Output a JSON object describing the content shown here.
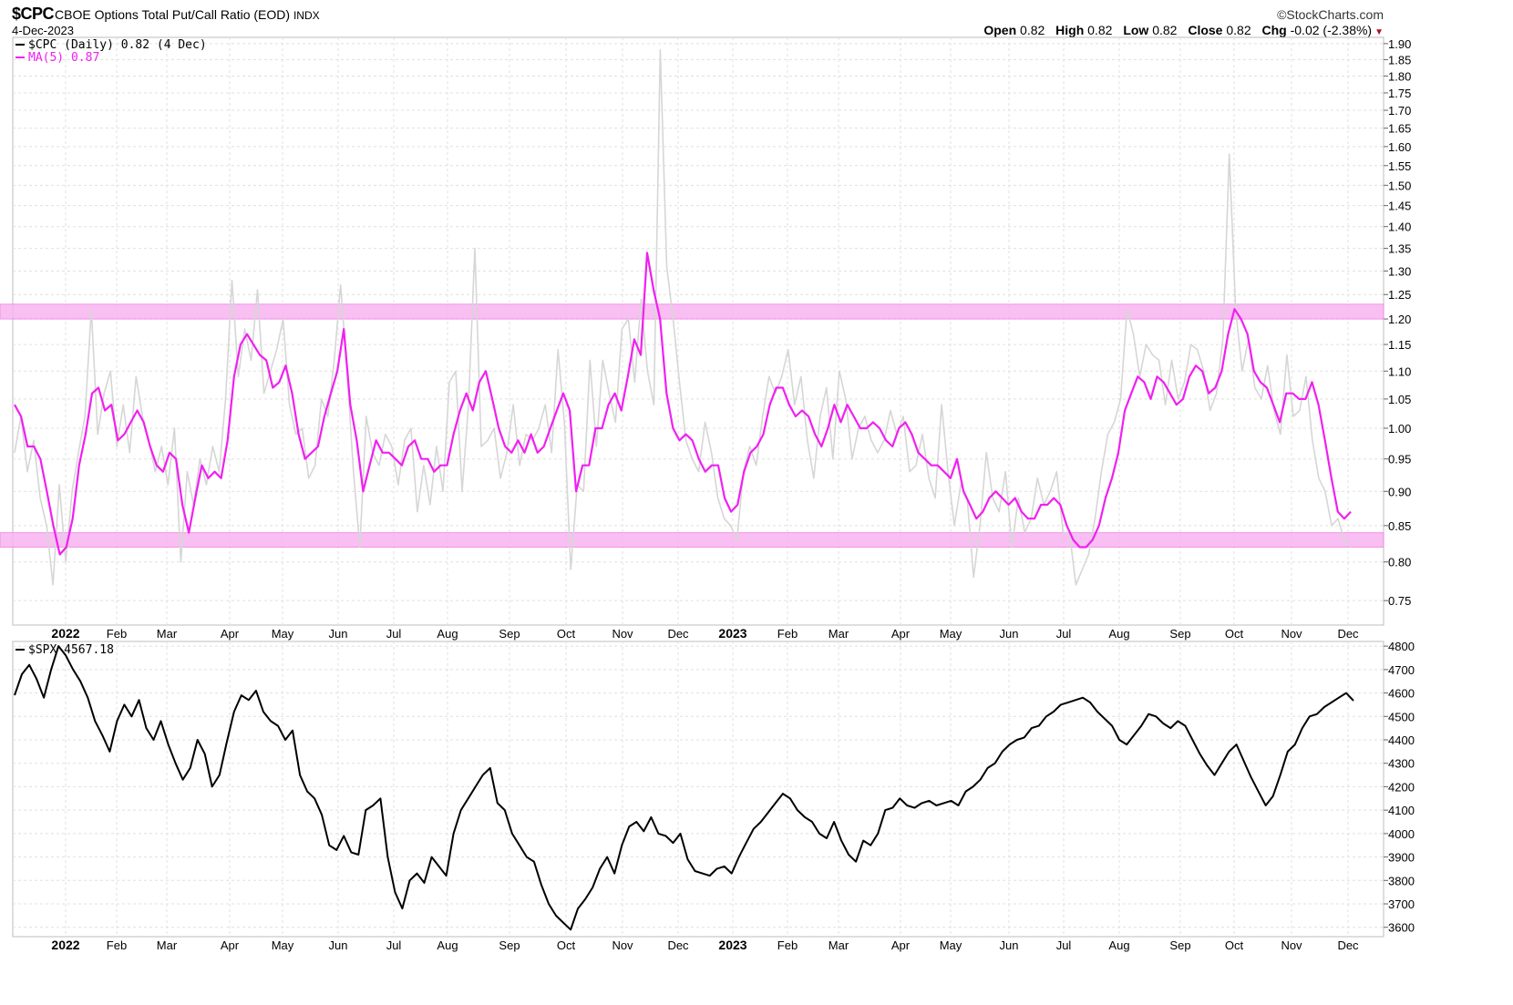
{
  "header": {
    "symbol": "$CPC",
    "name": "CBOE Options Total Put/Call Ratio (EOD)",
    "exchange": "INDX",
    "date": "4-Dec-2023",
    "brand": "©StockCharts.com",
    "open_label": "Open",
    "open": "0.82",
    "high_label": "High",
    "high": "0.82",
    "low_label": "Low",
    "low": "0.82",
    "close_label": "Close",
    "close": "0.82",
    "chg_label": "Chg",
    "chg": "-0.02 (-2.38%)",
    "down_icon": "down-triangle-icon"
  },
  "colors": {
    "cpc_raw": "#d6d6d6",
    "ma": "#f020f0",
    "band": "#f8b4f0",
    "spx": "#000000",
    "grid": "#e0e0e0",
    "chg_down": "#b01020"
  },
  "chart_data": [
    {
      "type": "line",
      "legend": [
        "$CPC (Daily) 0.82 (4 Dec)",
        "MA(5) 0.87"
      ],
      "ylim": [
        0.72,
        1.92
      ],
      "y_scale": "log",
      "y_ticks": [
        0.75,
        0.8,
        0.85,
        0.9,
        0.95,
        1.0,
        1.05,
        1.1,
        1.15,
        1.2,
        1.25,
        1.3,
        1.35,
        1.4,
        1.45,
        1.5,
        1.55,
        1.6,
        1.65,
        1.7,
        1.75,
        1.8,
        1.85,
        1.9
      ],
      "x_ticks": [
        "2022",
        "Feb",
        "Mar",
        "Apr",
        "May",
        "Jun",
        "Jul",
        "Aug",
        "Sep",
        "Oct",
        "Nov",
        "Dec",
        "2023",
        "Feb",
        "Mar",
        "Apr",
        "May",
        "Jun",
        "Jul",
        "Aug",
        "Sep",
        "Oct",
        "Nov",
        "Dec"
      ],
      "bands": [
        [
          1.2,
          1.23
        ],
        [
          0.82,
          0.84
        ]
      ],
      "series": [
        {
          "name": "$CPC (Daily)",
          "values": [
            0.96,
            1.02,
            0.93,
            0.98,
            0.89,
            0.85,
            0.77,
            0.91,
            0.8,
            0.9,
            0.96,
            1.02,
            1.22,
            0.99,
            1.06,
            1.1,
            0.97,
            1.04,
            0.96,
            1.09,
            1.02,
            0.98,
            0.93,
            0.97,
            0.91,
            1.0,
            0.8,
            0.93,
            0.88,
            0.95,
            0.91,
            0.97,
            0.93,
            1.05,
            1.28,
            1.09,
            1.18,
            1.12,
            1.26,
            1.06,
            1.1,
            1.14,
            1.2,
            1.04,
            0.99,
            1.0,
            0.92,
            0.94,
            1.05,
            1.02,
            1.12,
            1.27,
            1.1,
            0.93,
            0.82,
            1.02,
            0.96,
            0.94,
            0.99,
            0.97,
            0.91,
            0.98,
            1.0,
            0.87,
            0.94,
            0.88,
            0.97,
            0.9,
            1.08,
            1.1,
            0.9,
            1.04,
            1.35,
            0.97,
            0.98,
            1.0,
            0.92,
            0.96,
            1.04,
            0.94,
            0.99,
            0.98,
            1.0,
            1.04,
            0.96,
            1.14,
            1.01,
            0.79,
            0.91,
            0.9,
            1.12,
            0.97,
            1.12,
            1.06,
            1.01,
            1.18,
            1.2,
            1.08,
            1.24,
            1.1,
            1.04,
            1.88,
            1.31,
            1.2,
            1.08,
            0.98,
            0.95,
            0.93,
            1.01,
            0.96,
            0.89,
            0.86,
            0.85,
            0.83,
            0.93,
            0.97,
            0.94,
            1.02,
            1.09,
            1.06,
            1.09,
            1.14,
            1.04,
            1.09,
            0.98,
            0.92,
            1.02,
            1.07,
            0.95,
            1.1,
            1.05,
            0.95,
            1.0,
            1.02,
            0.98,
            0.96,
            0.98,
            1.03,
            0.99,
            1.02,
            0.93,
            0.94,
            0.99,
            0.92,
            0.89,
            1.04,
            0.93,
            0.85,
            0.91,
            0.89,
            0.78,
            0.85,
            0.96,
            0.89,
            0.87,
            0.93,
            0.82,
            0.89,
            0.84,
            0.86,
            0.92,
            0.88,
            0.9,
            0.93,
            0.84,
            0.84,
            0.77,
            0.79,
            0.81,
            0.86,
            0.93,
            0.99,
            1.01,
            1.05,
            1.22,
            1.17,
            1.09,
            1.15,
            1.13,
            1.12,
            1.04,
            1.12,
            1.05,
            1.08,
            1.15,
            1.14,
            1.1,
            1.03,
            1.06,
            1.16,
            1.58,
            1.22,
            1.1,
            1.16,
            1.07,
            1.05,
            1.11,
            1.03,
            0.99,
            1.13,
            1.02,
            1.03,
            1.09,
            0.98,
            0.92,
            0.9,
            0.85,
            0.86,
            0.83,
            0.82
          ]
        },
        {
          "name": "MA(5)",
          "values": [
            1.04,
            1.02,
            0.97,
            0.97,
            0.95,
            0.9,
            0.85,
            0.81,
            0.82,
            0.86,
            0.94,
            0.99,
            1.06,
            1.07,
            1.03,
            1.04,
            0.98,
            0.99,
            1.01,
            1.03,
            1.01,
            0.97,
            0.94,
            0.93,
            0.96,
            0.95,
            0.88,
            0.84,
            0.89,
            0.94,
            0.92,
            0.93,
            0.92,
            0.98,
            1.09,
            1.15,
            1.17,
            1.15,
            1.13,
            1.12,
            1.07,
            1.08,
            1.11,
            1.06,
            0.99,
            0.95,
            0.96,
            0.97,
            1.02,
            1.06,
            1.1,
            1.18,
            1.04,
            0.98,
            0.9,
            0.94,
            0.98,
            0.96,
            0.96,
            0.95,
            0.94,
            0.97,
            0.98,
            0.95,
            0.95,
            0.93,
            0.94,
            0.94,
            0.99,
            1.03,
            1.06,
            1.03,
            1.08,
            1.1,
            1.05,
            1.0,
            0.97,
            0.96,
            0.98,
            0.96,
            0.99,
            0.96,
            0.97,
            1.0,
            1.03,
            1.06,
            1.03,
            0.9,
            0.94,
            0.94,
            1.0,
            1.0,
            1.04,
            1.06,
            1.03,
            1.09,
            1.16,
            1.13,
            1.34,
            1.26,
            1.2,
            1.06,
            1.0,
            0.98,
            0.99,
            0.98,
            0.95,
            0.93,
            0.94,
            0.94,
            0.89,
            0.87,
            0.88,
            0.93,
            0.96,
            0.97,
            0.99,
            1.04,
            1.07,
            1.07,
            1.04,
            1.02,
            1.03,
            1.02,
            0.99,
            0.97,
            1.0,
            1.04,
            1.01,
            1.04,
            1.02,
            1.0,
            1.0,
            1.01,
            1.0,
            0.98,
            0.97,
            1.0,
            1.01,
            0.99,
            0.96,
            0.95,
            0.94,
            0.94,
            0.93,
            0.92,
            0.95,
            0.9,
            0.88,
            0.86,
            0.87,
            0.89,
            0.9,
            0.89,
            0.88,
            0.89,
            0.87,
            0.86,
            0.86,
            0.88,
            0.88,
            0.89,
            0.88,
            0.85,
            0.83,
            0.82,
            0.82,
            0.83,
            0.85,
            0.89,
            0.92,
            0.96,
            1.03,
            1.06,
            1.09,
            1.08,
            1.05,
            1.09,
            1.08,
            1.06,
            1.04,
            1.05,
            1.09,
            1.11,
            1.1,
            1.06,
            1.07,
            1.1,
            1.17,
            1.22,
            1.2,
            1.17,
            1.1,
            1.08,
            1.07,
            1.04,
            1.01,
            1.06,
            1.06,
            1.05,
            1.05,
            1.08,
            1.04,
            0.98,
            0.92,
            0.87,
            0.86,
            0.87
          ]
        }
      ]
    },
    {
      "type": "line",
      "legend": [
        "$SPX 4567.18"
      ],
      "ylim": [
        3560,
        4820
      ],
      "y_ticks": [
        3600,
        3700,
        3800,
        3900,
        4000,
        4100,
        4200,
        4300,
        4400,
        4500,
        4600,
        4700,
        4800
      ],
      "x_ticks": [
        "2022",
        "Feb",
        "Mar",
        "Apr",
        "May",
        "Jun",
        "Jul",
        "Aug",
        "Sep",
        "Oct",
        "Nov",
        "Dec",
        "2023",
        "Feb",
        "Mar",
        "Apr",
        "May",
        "Jun",
        "Jul",
        "Aug",
        "Sep",
        "Oct",
        "Nov",
        "Dec"
      ],
      "series": [
        {
          "name": "$SPX",
          "values": [
            4590,
            4680,
            4720,
            4660,
            4580,
            4700,
            4800,
            4760,
            4700,
            4650,
            4580,
            4480,
            4420,
            4350,
            4480,
            4550,
            4500,
            4570,
            4450,
            4400,
            4480,
            4380,
            4300,
            4230,
            4280,
            4400,
            4340,
            4200,
            4250,
            4390,
            4520,
            4590,
            4570,
            4610,
            4520,
            4480,
            4460,
            4400,
            4440,
            4250,
            4180,
            4150,
            4080,
            3950,
            3930,
            3990,
            3920,
            3910,
            4100,
            4120,
            4150,
            3900,
            3750,
            3680,
            3800,
            3830,
            3790,
            3900,
            3860,
            3820,
            4000,
            4100,
            4150,
            4200,
            4250,
            4280,
            4130,
            4100,
            4000,
            3950,
            3900,
            3880,
            3780,
            3700,
            3650,
            3620,
            3590,
            3680,
            3720,
            3770,
            3850,
            3900,
            3830,
            3950,
            4030,
            4050,
            4010,
            4070,
            4000,
            3990,
            3960,
            4000,
            3890,
            3840,
            3830,
            3820,
            3850,
            3860,
            3830,
            3900,
            3960,
            4020,
            4050,
            4090,
            4130,
            4170,
            4150,
            4100,
            4070,
            4050,
            4000,
            3980,
            4050,
            3970,
            3910,
            3880,
            3970,
            3950,
            4000,
            4100,
            4110,
            4150,
            4120,
            4110,
            4130,
            4140,
            4120,
            4130,
            4140,
            4120,
            4180,
            4200,
            4230,
            4280,
            4300,
            4350,
            4380,
            4400,
            4410,
            4450,
            4460,
            4500,
            4520,
            4550,
            4560,
            4570,
            4580,
            4560,
            4520,
            4490,
            4460,
            4400,
            4380,
            4420,
            4460,
            4510,
            4500,
            4470,
            4450,
            4480,
            4460,
            4400,
            4340,
            4290,
            4250,
            4300,
            4350,
            4380,
            4310,
            4240,
            4180,
            4120,
            4160,
            4250,
            4350,
            4380,
            4450,
            4500,
            4510,
            4540,
            4560,
            4580,
            4600,
            4567.18
          ]
        }
      ]
    }
  ]
}
